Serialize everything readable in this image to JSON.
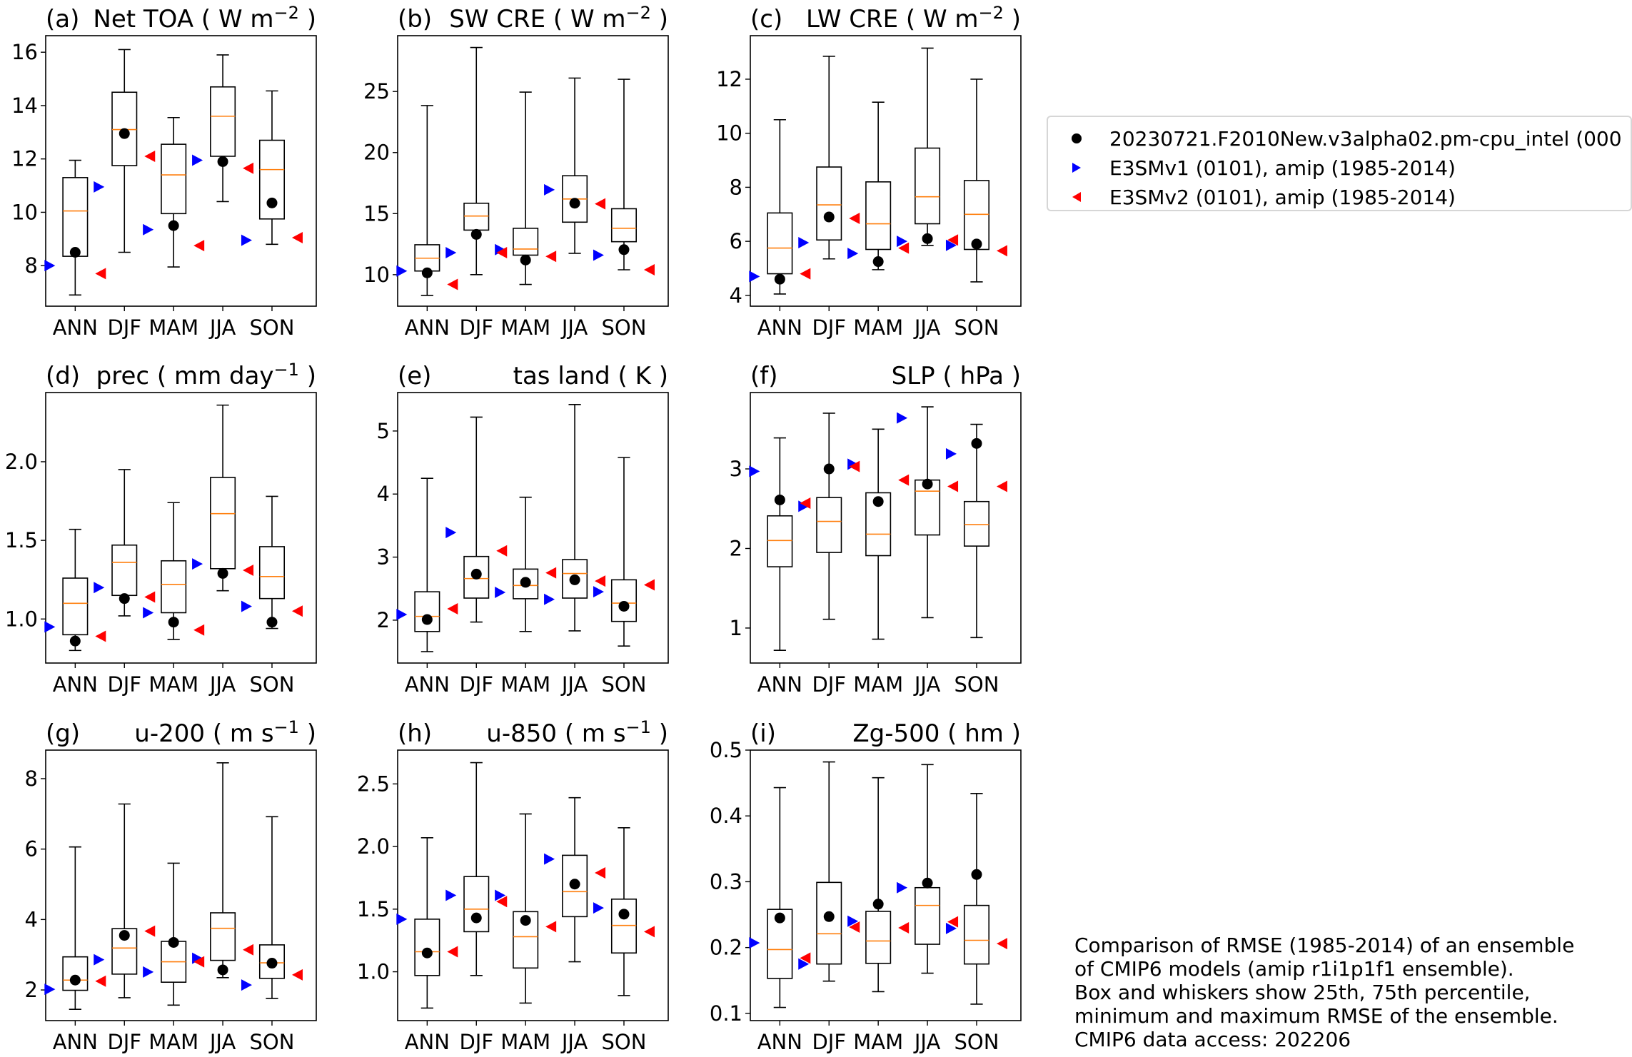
{
  "legend": {
    "entries": [
      {
        "label": "20230721.F2010New.v3alpha02.pm-cpu_intel (000",
        "marker": "circle",
        "color": "#000000"
      },
      {
        "label": "E3SMv1 (0101), amip (1985-2014)",
        "marker": "triangle-right",
        "color": "#0000ff"
      },
      {
        "label": "E3SMv2 (0101), amip (1985-2014)",
        "marker": "triangle-left",
        "color": "#ff0000"
      }
    ]
  },
  "note": {
    "lines": [
      "Comparison of RMSE (1985-2014) of an ensemble",
      "of CMIP6 models (amip r1i1p1f1 ensemble).",
      "Box and whiskers show 25th, 75th percentile,",
      "minimum and maximum RMSE of the ensemble.",
      "CMIP6 data access: 202206"
    ]
  },
  "colors": {
    "median": "#ff7f0e",
    "box": "#000000",
    "test": "#000000",
    "v1": "#0000ff",
    "v2": "#ff0000"
  },
  "chart_data": [
    {
      "type": "box",
      "panel": "(a)",
      "title": "Net TOA ( W m",
      "unit_sup": "−2",
      "title_suffix": " )",
      "title_align": "spread",
      "categories": [
        "ANN",
        "DJF",
        "MAM",
        "JJA",
        "SON"
      ],
      "ylim": [
        6.48,
        16.62
      ],
      "yticks": [
        8,
        10,
        12,
        14,
        16
      ],
      "ytick_labels": [
        "8",
        "10",
        "12",
        "14",
        "16"
      ],
      "boxes": [
        {
          "min": 6.9,
          "q1": 8.35,
          "median": 10.05,
          "q3": 11.3,
          "max": 11.95
        },
        {
          "min": 8.5,
          "q1": 11.75,
          "median": 13.1,
          "q3": 14.5,
          "max": 16.1
        },
        {
          "min": 7.95,
          "q1": 9.95,
          "median": 11.4,
          "q3": 12.55,
          "max": 13.55
        },
        {
          "min": 10.4,
          "q1": 12.1,
          "median": 13.6,
          "q3": 14.7,
          "max": 15.9
        },
        {
          "min": 8.8,
          "q1": 9.75,
          "median": 11.6,
          "q3": 12.7,
          "max": 14.55
        }
      ],
      "series": [
        {
          "name": "20230721.F2010New.v3alpha02.pm-cpu_intel",
          "values": [
            8.5,
            12.95,
            9.5,
            11.9,
            10.35
          ]
        },
        {
          "name": "E3SMv1 (0101), amip (1985-2014)",
          "values": [
            8.0,
            10.95,
            9.35,
            11.95,
            8.95
          ]
        },
        {
          "name": "E3SMv2 (0101), amip (1985-2014)",
          "values": [
            7.7,
            12.1,
            8.75,
            11.65,
            9.05
          ]
        }
      ]
    },
    {
      "type": "box",
      "panel": "(b)",
      "title": "SW CRE ( W m",
      "unit_sup": "−2",
      "title_suffix": " )",
      "title_align": "spread",
      "categories": [
        "ANN",
        "DJF",
        "MAM",
        "JJA",
        "SON"
      ],
      "ylim": [
        7.42,
        29.57
      ],
      "yticks": [
        10,
        15,
        20,
        25
      ],
      "ytick_labels": [
        "10",
        "15",
        "20",
        "25"
      ],
      "boxes": [
        {
          "min": 8.3,
          "q1": 10.3,
          "median": 11.35,
          "q3": 12.45,
          "max": 23.85
        },
        {
          "min": 10.0,
          "q1": 13.65,
          "median": 14.8,
          "q3": 15.85,
          "max": 28.6
        },
        {
          "min": 9.2,
          "q1": 11.6,
          "median": 12.1,
          "q3": 13.8,
          "max": 24.95
        },
        {
          "min": 11.75,
          "q1": 14.3,
          "median": 16.2,
          "q3": 18.1,
          "max": 26.1
        },
        {
          "min": 10.4,
          "q1": 12.7,
          "median": 13.8,
          "q3": 15.4,
          "max": 26.0
        }
      ],
      "series": [
        {
          "name": "20230721.F2010New.v3alpha02.pm-cpu_intel",
          "values": [
            10.15,
            13.3,
            11.2,
            15.85,
            12.05
          ]
        },
        {
          "name": "E3SMv1 (0101), amip (1985-2014)",
          "values": [
            10.3,
            11.8,
            12.05,
            16.95,
            11.6
          ]
        },
        {
          "name": "E3SMv2 (0101), amip (1985-2014)",
          "values": [
            9.2,
            11.8,
            11.5,
            15.8,
            10.4
          ]
        }
      ]
    },
    {
      "type": "box",
      "panel": "(c)",
      "title": "LW CRE ( W m",
      "unit_sup": "−2",
      "title_suffix": " )",
      "title_align": "spread",
      "categories": [
        "ANN",
        "DJF",
        "MAM",
        "JJA",
        "SON"
      ],
      "ylim": [
        3.6,
        13.61
      ],
      "yticks": [
        4,
        6,
        8,
        10,
        12
      ],
      "ytick_labels": [
        "4",
        "6",
        "8",
        "10",
        "12"
      ],
      "boxes": [
        {
          "min": 4.05,
          "q1": 4.8,
          "median": 5.75,
          "q3": 7.05,
          "max": 10.5
        },
        {
          "min": 5.35,
          "q1": 6.05,
          "median": 7.35,
          "q3": 8.75,
          "max": 12.85
        },
        {
          "min": 4.95,
          "q1": 5.7,
          "median": 6.65,
          "q3": 8.2,
          "max": 11.15
        },
        {
          "min": 5.85,
          "q1": 6.65,
          "median": 7.65,
          "q3": 9.45,
          "max": 13.15
        },
        {
          "min": 4.5,
          "q1": 5.7,
          "median": 7.0,
          "q3": 8.25,
          "max": 12.0
        }
      ],
      "series": [
        {
          "name": "20230721.F2010New.v3alpha02.pm-cpu_intel",
          "values": [
            4.6,
            6.9,
            5.25,
            6.1,
            5.9
          ]
        },
        {
          "name": "E3SMv1 (0101), amip (1985-2014)",
          "values": [
            4.7,
            5.95,
            5.55,
            6.0,
            5.85
          ]
        },
        {
          "name": "E3SMv2 (0101), amip (1985-2014)",
          "values": [
            4.8,
            6.85,
            5.75,
            6.05,
            5.65
          ]
        }
      ]
    },
    {
      "type": "box",
      "panel": "(d)",
      "title": "prec ( mm day",
      "unit_sup": "−1",
      "title_suffix": " )",
      "title_align": "spread",
      "categories": [
        "ANN",
        "DJF",
        "MAM",
        "JJA",
        "SON"
      ],
      "ylim": [
        0.72,
        2.44
      ],
      "yticks": [
        1.0,
        1.5,
        2.0
      ],
      "ytick_labels": [
        "1.0",
        "1.5",
        "2.0"
      ],
      "boxes": [
        {
          "min": 0.8,
          "q1": 0.9,
          "median": 1.1,
          "q3": 1.26,
          "max": 1.57
        },
        {
          "min": 1.02,
          "q1": 1.15,
          "median": 1.36,
          "q3": 1.47,
          "max": 1.95
        },
        {
          "min": 0.87,
          "q1": 1.04,
          "median": 1.22,
          "q3": 1.37,
          "max": 1.74
        },
        {
          "min": 1.18,
          "q1": 1.32,
          "median": 1.67,
          "q3": 1.9,
          "max": 2.36
        },
        {
          "min": 0.94,
          "q1": 1.13,
          "median": 1.27,
          "q3": 1.46,
          "max": 1.78
        }
      ],
      "series": [
        {
          "name": "20230721.F2010New.v3alpha02.pm-cpu_intel",
          "values": [
            0.86,
            1.13,
            0.98,
            1.29,
            0.98
          ]
        },
        {
          "name": "E3SMv1 (0101), amip (1985-2014)",
          "values": [
            0.95,
            1.2,
            1.04,
            1.35,
            1.08
          ]
        },
        {
          "name": "E3SMv2 (0101), amip (1985-2014)",
          "values": [
            0.89,
            1.14,
            0.93,
            1.31,
            1.05
          ]
        }
      ]
    },
    {
      "type": "box",
      "panel": "(e)",
      "title": "tas land ( K )",
      "unit_sup": "",
      "title_suffix": "",
      "title_align": "right",
      "categories": [
        "ANN",
        "DJF",
        "MAM",
        "JJA",
        "SON"
      ],
      "ylim": [
        1.32,
        5.61
      ],
      "yticks": [
        2,
        3,
        4,
        5
      ],
      "ytick_labels": [
        "2",
        "3",
        "4",
        "5"
      ],
      "boxes": [
        {
          "min": 1.5,
          "q1": 1.82,
          "median": 2.06,
          "q3": 2.45,
          "max": 4.25
        },
        {
          "min": 1.97,
          "q1": 2.35,
          "median": 2.66,
          "q3": 3.01,
          "max": 5.22
        },
        {
          "min": 1.82,
          "q1": 2.34,
          "median": 2.55,
          "q3": 2.81,
          "max": 3.95
        },
        {
          "min": 1.83,
          "q1": 2.35,
          "median": 2.74,
          "q3": 2.96,
          "max": 5.42
        },
        {
          "min": 1.59,
          "q1": 1.98,
          "median": 2.27,
          "q3": 2.64,
          "max": 4.58
        }
      ],
      "series": [
        {
          "name": "20230721.F2010New.v3alpha02.pm-cpu_intel",
          "values": [
            2.01,
            2.73,
            2.6,
            2.64,
            2.22
          ]
        },
        {
          "name": "E3SMv1 (0101), amip (1985-2014)",
          "values": [
            2.09,
            3.39,
            2.44,
            2.33,
            2.45
          ]
        },
        {
          "name": "E3SMv2 (0101), amip (1985-2014)",
          "values": [
            2.18,
            3.1,
            2.75,
            2.62,
            2.56
          ]
        }
      ]
    },
    {
      "type": "box",
      "panel": "(f)",
      "title": "SLP ( hPa )",
      "unit_sup": "",
      "title_suffix": "",
      "title_align": "right",
      "categories": [
        "ANN",
        "DJF",
        "MAM",
        "JJA",
        "SON"
      ],
      "ylim": [
        0.56,
        3.96
      ],
      "yticks": [
        1,
        2,
        3
      ],
      "ytick_labels": [
        "1",
        "2",
        "3"
      ],
      "boxes": [
        {
          "min": 0.72,
          "q1": 1.77,
          "median": 2.1,
          "q3": 2.41,
          "max": 3.39
        },
        {
          "min": 1.11,
          "q1": 1.95,
          "median": 2.34,
          "q3": 2.64,
          "max": 3.7
        },
        {
          "min": 0.86,
          "q1": 1.91,
          "median": 2.18,
          "q3": 2.7,
          "max": 3.5
        },
        {
          "min": 1.13,
          "q1": 2.17,
          "median": 2.72,
          "q3": 2.86,
          "max": 3.78
        },
        {
          "min": 0.88,
          "q1": 2.03,
          "median": 2.3,
          "q3": 2.59,
          "max": 3.56
        }
      ],
      "series": [
        {
          "name": "20230721.F2010New.v3alpha02.pm-cpu_intel",
          "values": [
            2.61,
            3.0,
            2.59,
            2.81,
            3.32
          ]
        },
        {
          "name": "E3SMv1 (0101), amip (1985-2014)",
          "values": [
            2.97,
            2.53,
            3.06,
            3.64,
            3.19
          ]
        },
        {
          "name": "E3SMv2 (0101), amip (1985-2014)",
          "values": [
            2.57,
            3.03,
            2.86,
            2.78,
            2.78
          ]
        }
      ]
    },
    {
      "type": "box",
      "panel": "(g)",
      "title": "u-200 ( m s",
      "unit_sup": "−1",
      "title_suffix": " )",
      "title_align": "right",
      "categories": [
        "ANN",
        "DJF",
        "MAM",
        "JJA",
        "SON"
      ],
      "ylim": [
        1.13,
        8.81
      ],
      "yticks": [
        2,
        4,
        6,
        8
      ],
      "ytick_labels": [
        "2",
        "4",
        "6",
        "8"
      ],
      "boxes": [
        {
          "min": 1.45,
          "q1": 1.99,
          "median": 2.28,
          "q3": 2.94,
          "max": 6.06
        },
        {
          "min": 1.78,
          "q1": 2.45,
          "median": 3.19,
          "q3": 3.74,
          "max": 7.28
        },
        {
          "min": 1.57,
          "q1": 2.22,
          "median": 2.8,
          "q3": 3.38,
          "max": 5.6
        },
        {
          "min": 2.35,
          "q1": 2.84,
          "median": 3.75,
          "q3": 4.19,
          "max": 8.45
        },
        {
          "min": 1.76,
          "q1": 2.33,
          "median": 2.77,
          "q3": 3.28,
          "max": 6.92
        }
      ],
      "series": [
        {
          "name": "20230721.F2010New.v3alpha02.pm-cpu_intel",
          "values": [
            2.28,
            3.55,
            3.35,
            2.57,
            2.76
          ]
        },
        {
          "name": "E3SMv1 (0101), amip (1985-2014)",
          "values": [
            2.02,
            2.86,
            2.51,
            2.9,
            2.14
          ]
        },
        {
          "name": "E3SMv2 (0101), amip (1985-2014)",
          "values": [
            2.25,
            3.67,
            2.8,
            3.14,
            2.43
          ]
        }
      ]
    },
    {
      "type": "box",
      "panel": "(h)",
      "title": "u-850 ( m s",
      "unit_sup": "−1",
      "title_suffix": " )",
      "title_align": "right",
      "categories": [
        "ANN",
        "DJF",
        "MAM",
        "JJA",
        "SON"
      ],
      "ylim": [
        0.61,
        2.77
      ],
      "yticks": [
        1.0,
        1.5,
        2.0,
        2.5
      ],
      "ytick_labels": [
        "1.0",
        "1.5",
        "2.0",
        "2.5"
      ],
      "boxes": [
        {
          "min": 0.71,
          "q1": 0.97,
          "median": 1.16,
          "q3": 1.42,
          "max": 2.07
        },
        {
          "min": 0.97,
          "q1": 1.32,
          "median": 1.5,
          "q3": 1.76,
          "max": 2.67
        },
        {
          "min": 0.75,
          "q1": 1.03,
          "median": 1.28,
          "q3": 1.48,
          "max": 2.26
        },
        {
          "min": 1.08,
          "q1": 1.44,
          "median": 1.64,
          "q3": 1.93,
          "max": 2.39
        },
        {
          "min": 0.81,
          "q1": 1.15,
          "median": 1.37,
          "q3": 1.58,
          "max": 2.15
        }
      ],
      "series": [
        {
          "name": "20230721.F2010New.v3alpha02.pm-cpu_intel",
          "values": [
            1.15,
            1.43,
            1.41,
            1.7,
            1.46
          ]
        },
        {
          "name": "E3SMv1 (0101), amip (1985-2014)",
          "values": [
            1.42,
            1.61,
            1.61,
            1.9,
            1.51
          ]
        },
        {
          "name": "E3SMv2 (0101), amip (1985-2014)",
          "values": [
            1.16,
            1.56,
            1.36,
            1.79,
            1.32
          ]
        }
      ]
    },
    {
      "type": "box",
      "panel": "(i)",
      "title": "Zg-500 ( hm )",
      "unit_sup": "",
      "title_suffix": "",
      "title_align": "right",
      "categories": [
        "ANN",
        "DJF",
        "MAM",
        "JJA",
        "SON"
      ],
      "ylim": [
        0.089,
        0.5
      ],
      "yticks": [
        0.1,
        0.2,
        0.3,
        0.4,
        0.5
      ],
      "ytick_labels": [
        "0.1",
        "0.2",
        "0.3",
        "0.4",
        "0.5"
      ],
      "boxes": [
        {
          "min": 0.109,
          "q1": 0.153,
          "median": 0.197,
          "q3": 0.258,
          "max": 0.443
        },
        {
          "min": 0.149,
          "q1": 0.175,
          "median": 0.221,
          "q3": 0.299,
          "max": 0.482
        },
        {
          "min": 0.133,
          "q1": 0.176,
          "median": 0.21,
          "q3": 0.255,
          "max": 0.458
        },
        {
          "min": 0.161,
          "q1": 0.205,
          "median": 0.264,
          "q3": 0.291,
          "max": 0.478
        },
        {
          "min": 0.114,
          "q1": 0.175,
          "median": 0.211,
          "q3": 0.264,
          "max": 0.434
        }
      ],
      "series": [
        {
          "name": "20230721.F2010New.v3alpha02.pm-cpu_intel",
          "values": [
            0.245,
            0.247,
            0.266,
            0.298,
            0.311
          ]
        },
        {
          "name": "E3SMv1 (0101), amip (1985-2014)",
          "values": [
            0.207,
            0.175,
            0.24,
            0.291,
            0.229
          ]
        },
        {
          "name": "E3SMv2 (0101), amip (1985-2014)",
          "values": [
            0.184,
            0.231,
            0.23,
            0.239,
            0.206
          ]
        }
      ]
    }
  ]
}
